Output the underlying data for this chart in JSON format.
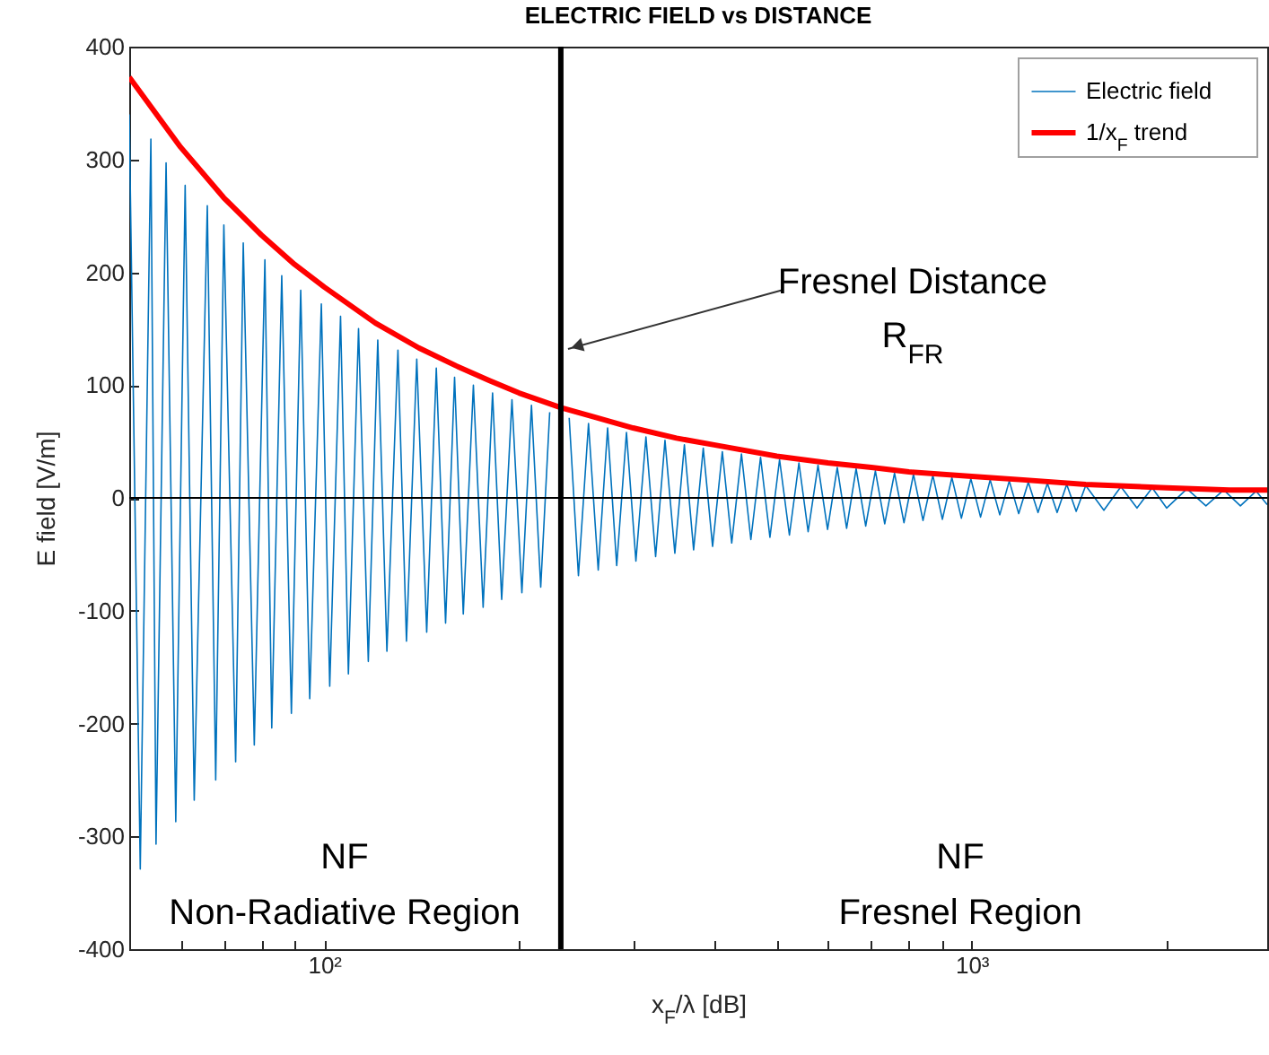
{
  "chart_data": {
    "type": "line",
    "title": "ELECTRIC FIELD vs DISTANCE",
    "xlabel": "x$_{F}$/λ [dB]",
    "ylabel": "E field [V/m]",
    "log": "x",
    "xlim": [
      50,
      2860
    ],
    "ylim": [
      -400,
      400
    ],
    "xticks": [
      {
        "value": 60,
        "label": null
      },
      {
        "value": 70,
        "label": null
      },
      {
        "value": 80,
        "label": null
      },
      {
        "value": 90,
        "label": null
      },
      {
        "value": 100,
        "label": "10²"
      },
      {
        "value": 200,
        "label": null
      },
      {
        "value": 300,
        "label": null
      },
      {
        "value": 400,
        "label": null
      },
      {
        "value": 500,
        "label": null
      },
      {
        "value": 600,
        "label": null
      },
      {
        "value": 700,
        "label": null
      },
      {
        "value": 800,
        "label": null
      },
      {
        "value": 900,
        "label": null
      },
      {
        "value": 1000,
        "label": "10³"
      },
      {
        "value": 2000,
        "label": null
      }
    ],
    "yticks": [
      -400,
      -300,
      -200,
      -100,
      0,
      100,
      200,
      300,
      400
    ],
    "legend": "top right",
    "series": [
      {
        "name": "Electric field",
        "color": "#0072bd",
        "type": "line",
        "x": [
          50,
          52,
          54,
          55,
          57,
          59,
          61,
          63,
          66,
          68,
          70,
          73,
          75,
          78,
          81,
          83,
          86,
          89,
          92,
          95,
          99,
          102,
          106,
          109,
          113,
          117,
          121,
          125,
          130,
          134,
          139,
          144,
          149,
          154,
          159,
          164,
          170,
          176,
          182,
          188,
          195,
          202,
          209,
          216,
          223,
          231,
          239,
          247,
          256,
          265,
          274,
          283,
          293,
          303,
          314,
          325,
          336,
          348,
          360,
          372,
          385,
          398,
          412,
          426,
          441,
          456,
          472,
          488,
          505,
          523,
          541,
          559,
          579,
          599,
          620,
          641,
          663,
          686,
          710,
          734,
          760,
          786,
          813,
          841,
          871,
          901,
          932,
          964,
          997,
          1032,
          1068,
          1105,
          1143,
          1182,
          1223,
          1266,
          1309,
          1355,
          1402,
          1450,
          1500,
          1600,
          1700,
          1800,
          1900,
          2000,
          2150,
          2300,
          2450,
          2600,
          2750,
          2860
        ],
        "values": [
          340,
          -329,
          318,
          -307,
          297,
          -287,
          277,
          -268,
          259,
          -250,
          242,
          -234,
          226,
          -219,
          211,
          -204,
          197,
          -191,
          184,
          -178,
          172,
          -167,
          161,
          -156,
          150,
          -145,
          140,
          -136,
          131,
          -127,
          123,
          -119,
          115,
          -111,
          107,
          -103,
          100,
          -97,
          93,
          -90,
          87,
          -84,
          82,
          -79,
          76,
          null,
          71,
          -69,
          66,
          -64,
          62,
          -60,
          58,
          -56,
          54,
          -52,
          51,
          -49,
          47,
          -46,
          44,
          -43,
          41,
          -40,
          39,
          -37,
          36,
          -35,
          34,
          -33,
          31,
          -30,
          29,
          -28,
          27,
          -27,
          26,
          -25,
          24,
          -23,
          22,
          -22,
          21,
          -20,
          20,
          -19,
          18,
          -18,
          17,
          -17,
          16,
          -15,
          15,
          -14,
          14,
          -13,
          13,
          -13,
          12,
          -12,
          11,
          -11,
          10,
          -9,
          9,
          -9,
          8,
          -7,
          7,
          -7,
          6,
          -6
        ]
      },
      {
        "name": "1/x$_{F}$ trend",
        "color": "#ff0000",
        "type": "line",
        "x": [
          50,
          60,
          70,
          80,
          90,
          100,
          120,
          140,
          160,
          180,
          200,
          232,
          260,
          300,
          350,
          400,
          500,
          600,
          700,
          800,
          1000,
          1200,
          1500,
          2000,
          2500,
          2860
        ],
        "values": [
          373,
          311,
          266,
          233,
          207,
          187,
          155,
          133,
          117,
          104,
          93,
          80,
          72,
          62,
          53,
          47,
          37,
          31,
          27,
          23,
          19,
          16,
          12,
          9,
          7,
          7
        ]
      }
    ],
    "ref_lines": [
      {
        "axis": "x",
        "value": 232,
        "color": "#000000"
      },
      {
        "axis": "y",
        "value": 0,
        "color": "#000000"
      }
    ],
    "annotations": [
      {
        "text": "Fresnel Distance\nR$_{FR}$",
        "x": 232,
        "y": 132
      },
      "NF\nNon-Radiative Region",
      "NF\nFresnel Region"
    ]
  }
}
